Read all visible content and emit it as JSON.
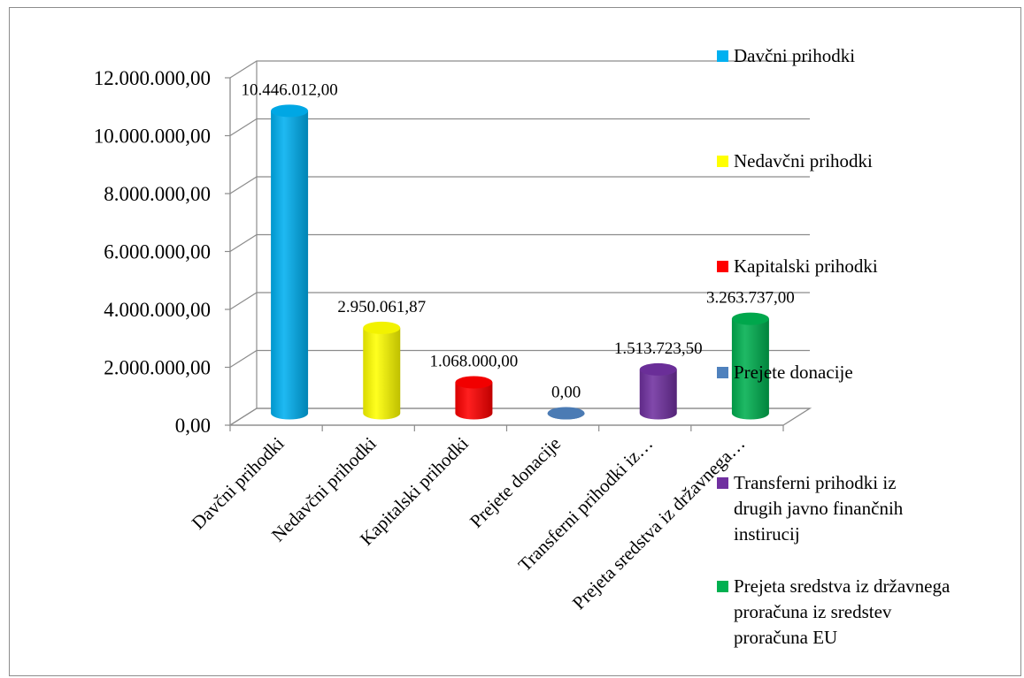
{
  "chart_data": {
    "type": "bar",
    "style": "3d-cylinder",
    "categories": [
      "Davčni prihodki",
      "Nedavčni prihodki",
      "Kapitalski prihodki",
      "Prejete donacije",
      "Transferni prihodki iz…",
      "Prejeta sredstva iz državnega…"
    ],
    "values": [
      10446012.0,
      2950061.87,
      1068000.0,
      0.0,
      1513723.5,
      3263737.0
    ],
    "data_labels": [
      "10.446.012,00",
      "2.950.061,87",
      "1.068.000,00",
      "0,00",
      "1.513.723,50",
      "3.263.737,00"
    ],
    "colors": [
      "#00B0F0",
      "#FFFF00",
      "#FF0000",
      "#4F81BD",
      "#7030A0",
      "#00B050"
    ],
    "yticks": [
      0,
      2000000,
      4000000,
      6000000,
      8000000,
      10000000,
      12000000
    ],
    "ytick_labels": [
      "0,00",
      "2.000.000,00",
      "4.000.000,00",
      "6.000.000,00",
      "8.000.000,00",
      "10.000.000,00",
      "12.000.000,00"
    ],
    "ylim": [
      0,
      12000000
    ],
    "grid": true,
    "legend_position": "right",
    "legend": [
      {
        "label_lines": [
          "Davčni prihodki"
        ],
        "color": "#00B0F0"
      },
      {
        "label_lines": [
          "Nedavčni prihodki"
        ],
        "color": "#FFFF00"
      },
      {
        "label_lines": [
          "Kapitalski prihodki"
        ],
        "color": "#FF0000"
      },
      {
        "label_lines": [
          "Prejete donacije"
        ],
        "color": "#4F81BD"
      },
      {
        "label_lines": [
          "Transferni prihodki iz",
          "drugih javno finančnih",
          "instirucij"
        ],
        "color": "#7030A0"
      },
      {
        "label_lines": [
          "Prejeta sredstva iz državnega",
          "proračuna iz sredstev",
          "proračuna EU"
        ],
        "color": "#00B050"
      }
    ]
  }
}
